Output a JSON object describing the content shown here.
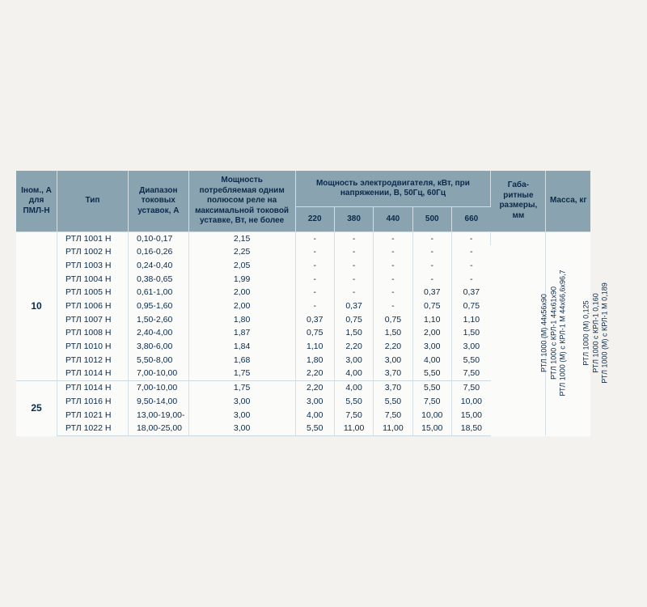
{
  "header": {
    "inom": "Iном., А для ПМЛ-Н",
    "type": "Тип",
    "range": "Диапазон токовых уставок, А",
    "power": "Мощность потребляемая одним полюсом реле на максимальной токовой уставке, Вт, не более",
    "motor": "Мощность электродвигателя, кВт, при напряжении, В, 50Гц, 60Гц",
    "v220": "220",
    "v380": "380",
    "v440": "440",
    "v500": "500",
    "v660": "660",
    "dims": "Габа-\nритные\nразмеры,\nмм",
    "mass": "Масса,\nкг"
  },
  "groups": [
    {
      "inom": "10",
      "rows": [
        {
          "type": "РТЛ 1001 Н",
          "range": "0,10-0,17",
          "power": "2,15",
          "v220": "-",
          "v380": "-",
          "v440": "-",
          "v500": "-",
          "v660": "-"
        },
        {
          "type": "РТЛ 1002 Н",
          "range": "0,16-0,26",
          "power": "2,25",
          "v220": "-",
          "v380": "-",
          "v440": "-",
          "v500": "-",
          "v660": "-"
        },
        {
          "type": "РТЛ 1003 Н",
          "range": "0,24-0,40",
          "power": "2,05",
          "v220": "-",
          "v380": "-",
          "v440": "-",
          "v500": "-",
          "v660": "-"
        },
        {
          "type": "РТЛ 1004 Н",
          "range": "0,38-0,65",
          "power": "1,99",
          "v220": "-",
          "v380": "-",
          "v440": "-",
          "v500": "-",
          "v660": "-"
        },
        {
          "type": "РТЛ 1005 Н",
          "range": "0,61-1,00",
          "power": "2,00",
          "v220": "-",
          "v380": "-",
          "v440": "-",
          "v500": "0,37",
          "v660": "0,37"
        },
        {
          "type": "РТЛ 1006 Н",
          "range": "0,95-1,60",
          "power": "2,00",
          "v220": "-",
          "v380": "0,37",
          "v440": "-",
          "v500": "0,75",
          "v660": "0,75"
        },
        {
          "type": "РТЛ 1007 Н",
          "range": "1,50-2,60",
          "power": "1,80",
          "v220": "0,37",
          "v380": "0,75",
          "v440": "0,75",
          "v500": "1,10",
          "v660": "1,10"
        },
        {
          "type": "РТЛ 1008 Н",
          "range": "2,40-4,00",
          "power": "1,87",
          "v220": "0,75",
          "v380": "1,50",
          "v440": "1,50",
          "v500": "2,00",
          "v660": "1,50"
        },
        {
          "type": "РТЛ 1010 Н",
          "range": "3,80-6,00",
          "power": "1,84",
          "v220": "1,10",
          "v380": "2,20",
          "v440": "2,20",
          "v500": "3,00",
          "v660": "3,00"
        },
        {
          "type": "РТЛ 1012 Н",
          "range": "5,50-8,00",
          "power": "1,68",
          "v220": "1,80",
          "v380": "3,00",
          "v440": "3,00",
          "v500": "4,00",
          "v660": "5,50"
        },
        {
          "type": "РТЛ 1014 Н",
          "range": "7,00-10,00",
          "power": "1,75",
          "v220": "2,20",
          "v380": "4,00",
          "v440": "3,70",
          "v500": "5,50",
          "v660": "7,50"
        }
      ]
    },
    {
      "inom": "25",
      "rows": [
        {
          "type": "РТЛ 1014 Н",
          "range": "7,00-10,00",
          "power": "1,75",
          "v220": "2,20",
          "v380": "4,00",
          "v440": "3,70",
          "v500": "5,50",
          "v660": "7,50"
        },
        {
          "type": "РТЛ 1016 Н",
          "range": "9,50-14,00",
          "power": "3,00",
          "v220": "3,00",
          "v380": "5,50",
          "v440": "5,50",
          "v500": "7,50",
          "v660": "10,00"
        },
        {
          "type": "РТЛ 1021 Н",
          "range": "13,00-19,00-",
          "power": "3,00",
          "v220": "4,00",
          "v380": "7,50",
          "v440": "7,50",
          "v500": "10,00",
          "v660": "15,00"
        },
        {
          "type": "РТЛ 1022 Н",
          "range": "18,00-25,00",
          "power": "3,00",
          "v220": "5,50",
          "v380": "11,00",
          "v440": "11,00",
          "v500": "15,00",
          "v660": "18,50"
        }
      ]
    }
  ],
  "dims_text": "РТЛ 1000 (М) 44х56х90\nРТЛ 1000 с КРЛ-1 44х61х90\nРТЛ 1000 (М) с КРЛ-1 М 44х66,6х96,7",
  "mass_text": "РТЛ 1000 (М) 0,125\nРТЛ 1000 с КРЛ-1 0,160\nРТЛ 1000 (М) с КРЛ-1 М 0,189",
  "colors": {
    "header_bg": "#8aa3b0",
    "border": "#d2dde2",
    "text": "#0a2a4a",
    "page_bg": "#f4f2ee",
    "sheet_bg": "#fbfbf9"
  }
}
